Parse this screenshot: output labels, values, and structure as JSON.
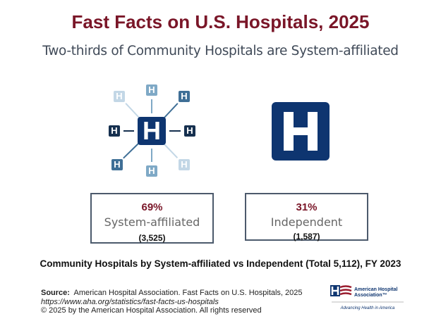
{
  "header": {
    "title": "Fast Facts on U.S. Hospitals, 2025",
    "subtitle": "Two-thirds of Community Hospitals are System-affiliated"
  },
  "icons": {
    "system": "hospital-network-icon",
    "independent": "hospital-h-icon",
    "hub_letter": "H",
    "colors": {
      "dark": "#0e3570",
      "title": "#7a1628"
    }
  },
  "cards": [
    {
      "percent": "69%",
      "label": "System-affiliated",
      "count": "(3,525)"
    },
    {
      "percent": "31%",
      "label": "Independent",
      "count": "(1,587)"
    }
  ],
  "caption": "Community Hospitals by System-affiliated vs Independent (Total 5,112), FY 2023",
  "footer": {
    "source_label": "Source:",
    "source_text": "American Hospital Association.  Fast Facts on U.S. Hospitals, 2025",
    "url": "https://www.aha.org/statistics/fast-facts-us-hospitals",
    "copyright": "© 2025 by the American Hospital Association. All rights reserved"
  },
  "logo": {
    "name": "American Hospital Association™",
    "tagline": "Advancing Health in America"
  }
}
